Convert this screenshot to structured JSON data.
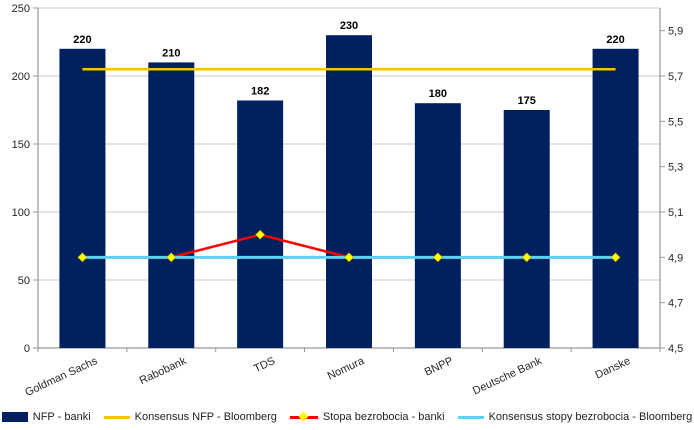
{
  "chart_data": {
    "type": "bar",
    "subtype": "bar-line-combo",
    "title": "",
    "categories": [
      "Goldman Sachs",
      "Rabobank",
      "TDS",
      "Nomura",
      "BNPP",
      "Deutsche Bank",
      "Danske"
    ],
    "series": [
      {
        "name": "NFP - banki",
        "type": "bar",
        "axis": "left",
        "color": "#002060",
        "values": [
          220,
          210,
          182,
          230,
          180,
          175,
          220
        ],
        "data_labels": [
          "220",
          "210",
          "182",
          "230",
          "180",
          "175",
          "220"
        ]
      },
      {
        "name": "Konsensus NFP - Bloomberg",
        "type": "line",
        "axis": "left",
        "color": "#FFC000",
        "values": [
          205,
          205,
          205,
          205,
          205,
          205,
          205
        ]
      },
      {
        "name": "Stopa bezrobocia - banki",
        "type": "line",
        "axis": "right",
        "color": "#FF0000",
        "marker": "diamond",
        "marker_color": "#FFFF00",
        "values": [
          4.9,
          4.9,
          5.0,
          4.9,
          4.9,
          4.9,
          4.9
        ]
      },
      {
        "name": "Konsensus stopy bezrobocia  - Bloomberg",
        "type": "line",
        "axis": "right",
        "color": "#5BD2F2",
        "values": [
          4.9,
          4.9,
          4.9,
          4.9,
          4.9,
          4.9,
          4.9
        ]
      }
    ],
    "left_axis": {
      "min": 0,
      "max": 250,
      "step": 50,
      "tick_labels": [
        "0",
        "50",
        "100",
        "150",
        "200",
        "250"
      ]
    },
    "right_axis": {
      "min": 4.5,
      "max": 6.0,
      "step": 0.2,
      "tick_labels": [
        "4,5",
        "4,7",
        "4,9",
        "5,1",
        "5,3",
        "5,5",
        "5,7",
        "5,9"
      ]
    },
    "grid": true,
    "legend_position": "bottom",
    "styles": {
      "grid_color": "#C9C9C9",
      "axis_color": "#969696",
      "tick_text_color": "#262626",
      "bar_label_color": "#000000",
      "background": "#FFFFFF"
    }
  }
}
